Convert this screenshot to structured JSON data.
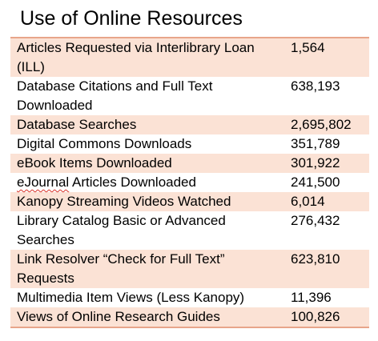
{
  "page": {
    "title": "Use of Online Resources"
  },
  "table": {
    "rows": [
      {
        "label": "Articles Requested via Interlibrary Loan (ILL)",
        "value": "1,564",
        "shaded": true
      },
      {
        "label": "Database Citations and Full Text Downloaded",
        "value": "638,193",
        "shaded": false
      },
      {
        "label": "Database Searches",
        "value": "2,695,802",
        "shaded": true
      },
      {
        "label": "Digital Commons Downloads",
        "value": "351,789",
        "shaded": false
      },
      {
        "label": "eBook Items Downloaded",
        "value": "301,922",
        "shaded": true
      },
      {
        "label_prefix": "eJournal",
        "label": "eJournal Articles Downloaded",
        "label_rest": " Articles Downloaded",
        "value": "241,500",
        "shaded": false
      },
      {
        "label": "Kanopy Streaming Videos Watched",
        "value": "6,014",
        "shaded": true
      },
      {
        "label": "Library Catalog Basic or Advanced Searches",
        "value": "276,432",
        "shaded": false
      },
      {
        "label": "Link Resolver “Check for Full Text” Requests",
        "value": "623,810",
        "shaded": true
      },
      {
        "label": "Multimedia Item Views (Less Kanopy)",
        "value": "11,396",
        "shaded": false
      },
      {
        "label": "Views of Online Research Guides",
        "value": "100,826",
        "shaded": true
      }
    ]
  },
  "colors": {
    "row_shade": "#fbe2d5",
    "rule": "#e8a58a",
    "spellcheck_underline": "#d93025"
  }
}
